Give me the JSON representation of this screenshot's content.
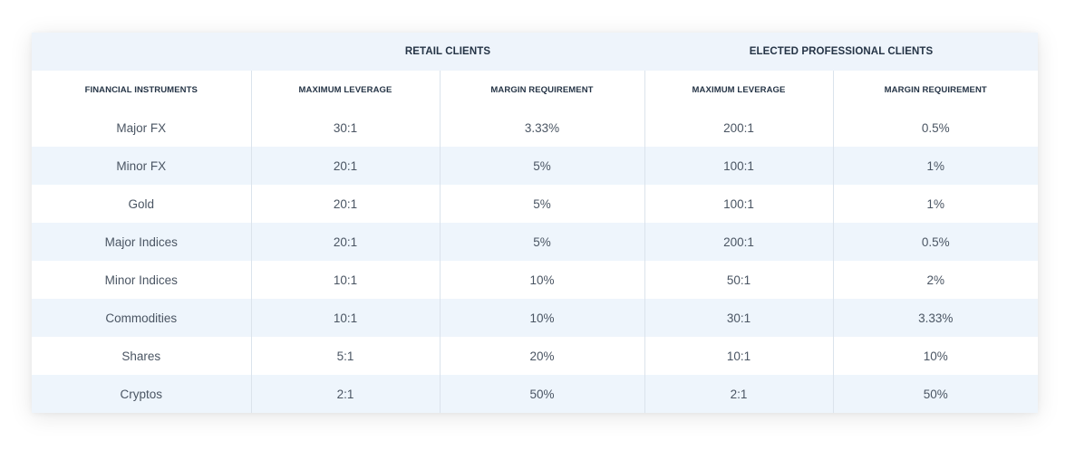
{
  "group_headers": {
    "retail": "RETAIL CLIENTS",
    "professional": "ELECTED PROFESSIONAL CLIENTS"
  },
  "column_headers": [
    "FINANCIAL INSTRUMENTS",
    "MAXIMUM LEVERAGE",
    "MARGIN REQUIREMENT",
    "MAXIMUM LEVERAGE",
    "MARGIN REQUIREMENT"
  ],
  "rows": [
    [
      "Major FX",
      "30:1",
      "3.33%",
      "200:1",
      "0.5%"
    ],
    [
      "Minor FX",
      "20:1",
      "5%",
      "100:1",
      "1%"
    ],
    [
      "Gold",
      "20:1",
      "5%",
      "100:1",
      "1%"
    ],
    [
      "Major Indices",
      "20:1",
      "5%",
      "200:1",
      "0.5%"
    ],
    [
      "Minor Indices",
      "10:1",
      "10%",
      "50:1",
      "2%"
    ],
    [
      "Commodities",
      "10:1",
      "10%",
      "30:1",
      "3.33%"
    ],
    [
      "Shares",
      "5:1",
      "20%",
      "10:1",
      "10%"
    ],
    [
      "Cryptos",
      "2:1",
      "50%",
      "2:1",
      "50%"
    ]
  ],
  "colors": {
    "header_band": "#eef4fb",
    "alt_row": "#eef5fc",
    "header_text": "#253446",
    "cell_text": "#4a5563",
    "divider": "#dbe3ec"
  }
}
